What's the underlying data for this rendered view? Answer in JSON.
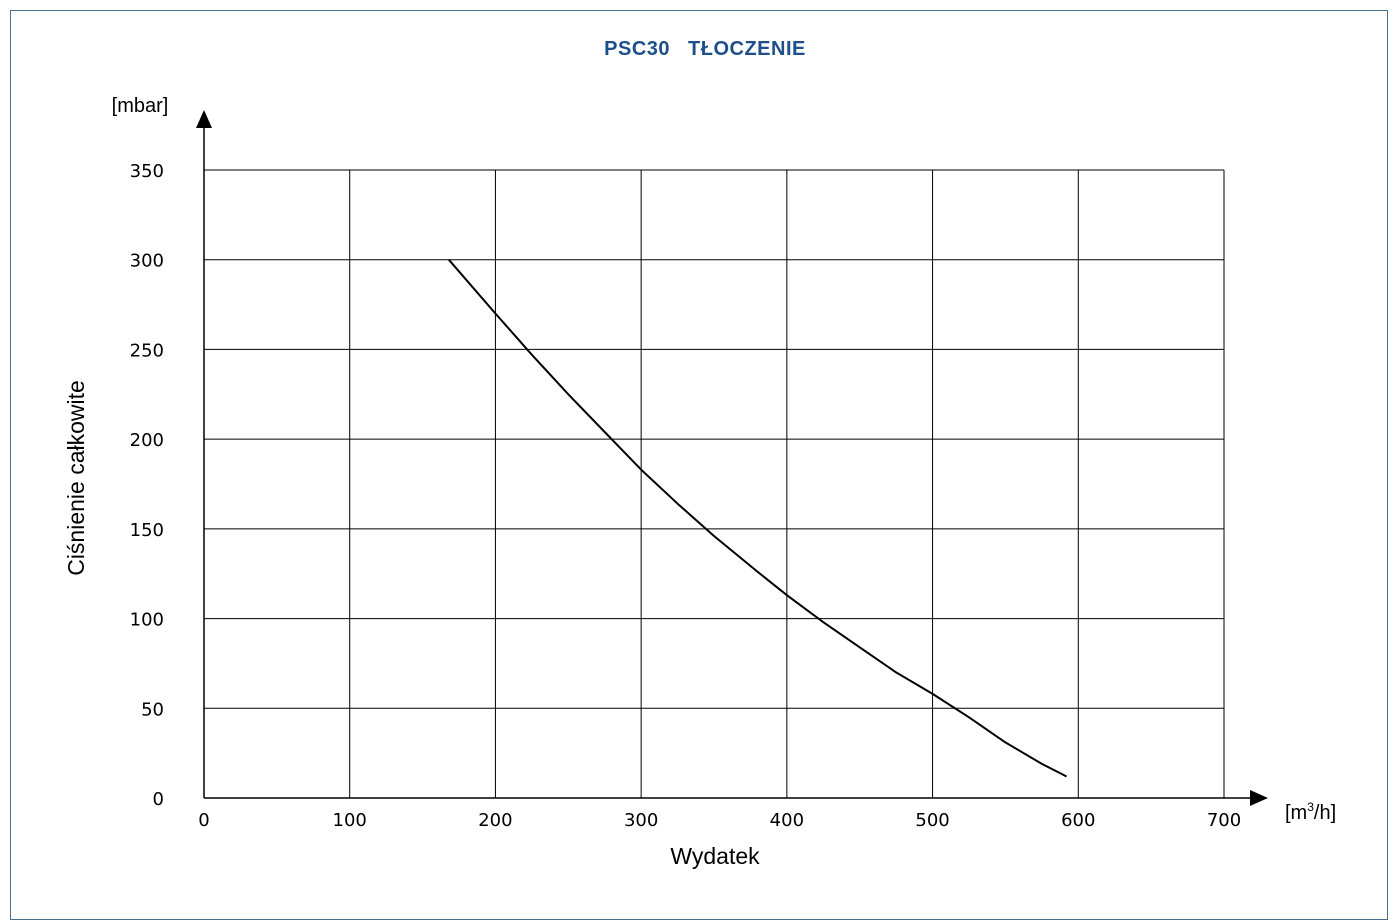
{
  "chart_data": {
    "type": "line",
    "title_model": "PSC30",
    "title_mode": "TŁOCZENIE",
    "xlabel": "Wydatek",
    "ylabel": "Ciśnienie całkowite",
    "x_unit_base": "[m",
    "x_unit_exp": "3",
    "x_unit_tail": "/h]",
    "y_unit": "[mbar]",
    "xlim": [
      0,
      700
    ],
    "ylim": [
      0,
      350
    ],
    "x_ticks": [
      0,
      100,
      200,
      300,
      400,
      500,
      600,
      700
    ],
    "y_ticks": [
      0,
      50,
      100,
      150,
      200,
      250,
      300,
      350
    ],
    "grid": true,
    "series": [
      {
        "x": [
          168,
          200,
          225,
          250,
          275,
          300,
          325,
          350,
          380,
          400,
          425,
          450,
          475,
          500,
          525,
          550,
          575,
          592
        ],
        "y": [
          300,
          270,
          247,
          225,
          204,
          183,
          164,
          146,
          126,
          113,
          98,
          84,
          70,
          58,
          45,
          31,
          19,
          12
        ]
      }
    ]
  }
}
